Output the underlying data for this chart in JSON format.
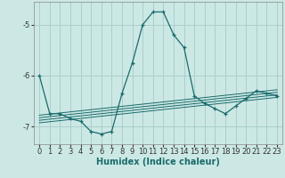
{
  "xlabel": "Humidex (Indice chaleur)",
  "background_color": "#cce8e5",
  "grid_color": "#aacfcc",
  "line_color": "#1a6b6b",
  "xlim": [
    -0.5,
    23.5
  ],
  "ylim": [
    -7.35,
    -4.55
  ],
  "yticks": [
    -7,
    -6,
    -5
  ],
  "xticks": [
    0,
    1,
    2,
    3,
    4,
    5,
    6,
    7,
    8,
    9,
    10,
    11,
    12,
    13,
    14,
    15,
    16,
    17,
    18,
    19,
    20,
    21,
    22,
    23
  ],
  "main_x": [
    0,
    1,
    2,
    3,
    4,
    5,
    6,
    7,
    8,
    9,
    10,
    11,
    12,
    13,
    14,
    15,
    16,
    17,
    18,
    19,
    20,
    21,
    22,
    23
  ],
  "main_y": [
    -6.0,
    -6.75,
    -6.75,
    -6.85,
    -6.9,
    -7.1,
    -7.15,
    -7.1,
    -6.35,
    -5.75,
    -5.0,
    -4.75,
    -4.75,
    -5.2,
    -5.45,
    -6.4,
    -6.55,
    -6.65,
    -6.75,
    -6.6,
    -6.45,
    -6.3,
    -6.35,
    -6.4
  ],
  "trend_lines": [
    {
      "x": [
        0,
        23
      ],
      "y": [
        -6.78,
        -6.28
      ]
    },
    {
      "x": [
        0,
        23
      ],
      "y": [
        -6.83,
        -6.33
      ]
    },
    {
      "x": [
        0,
        23
      ],
      "y": [
        -6.88,
        -6.38
      ]
    },
    {
      "x": [
        0,
        23
      ],
      "y": [
        -6.93,
        -6.43
      ]
    }
  ],
  "axis_fontsize": 7.0,
  "tick_fontsize": 6.0
}
